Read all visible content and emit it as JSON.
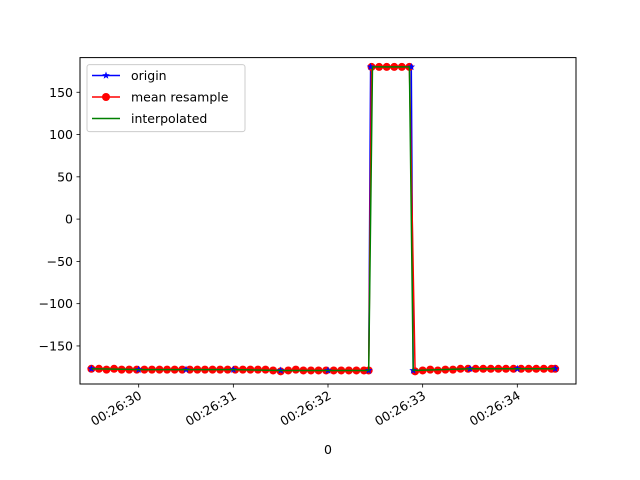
{
  "chart_data": {
    "type": "line",
    "title": "",
    "xlabel": "0",
    "ylabel": "",
    "x_axis_kind": "datetime",
    "xlim": [
      "00:26:29.38",
      "00:26:34.62"
    ],
    "ylim": [
      -195,
      191
    ],
    "x_ticks": [
      "00:26:30",
      "00:26:31",
      "00:26:32",
      "00:26:33",
      "00:26:34"
    ],
    "y_ticks": [
      150,
      100,
      50,
      0,
      -50,
      -100,
      -150
    ],
    "y_tick_labels": [
      "150",
      "100",
      "50",
      "0",
      "−50",
      "−100",
      "−150"
    ],
    "grid": false,
    "legend_position": "upper left",
    "series": [
      {
        "name": "origin",
        "color": "#0000ff",
        "marker": "star",
        "x": [
          "00:26:29.50",
          "00:26:30.00",
          "00:26:30.50",
          "00:26:31.00",
          "00:26:31.50",
          "00:26:32.00",
          "00:26:32.43",
          "00:26:32.45",
          "00:26:32.88",
          "00:26:32.90",
          "00:26:33.50",
          "00:26:34.00",
          "00:26:34.40"
        ],
        "values": [
          -177,
          -178,
          -178,
          -178,
          -179,
          -179,
          -179,
          180,
          180,
          -179,
          -177,
          -177,
          -177
        ]
      },
      {
        "name": "mean resample",
        "color": "#ff0000",
        "marker": "circle",
        "x": [
          "00:26:29.50",
          "00:26:29.58",
          "00:26:29.66",
          "00:26:29.74",
          "00:26:29.82",
          "00:26:29.90",
          "00:26:29.98",
          "00:26:30.06",
          "00:26:30.14",
          "00:26:30.22",
          "00:26:30.30",
          "00:26:30.38",
          "00:26:30.46",
          "00:26:30.54",
          "00:26:30.62",
          "00:26:30.70",
          "00:26:30.78",
          "00:26:30.86",
          "00:26:30.94",
          "00:26:31.02",
          "00:26:31.10",
          "00:26:31.18",
          "00:26:31.26",
          "00:26:31.34",
          "00:26:31.42",
          "00:26:31.50",
          "00:26:31.58",
          "00:26:31.66",
          "00:26:31.74",
          "00:26:31.82",
          "00:26:31.90",
          "00:26:31.98",
          "00:26:32.06",
          "00:26:32.14",
          "00:26:32.22",
          "00:26:32.30",
          "00:26:32.38",
          "00:26:32.43",
          "00:26:32.46",
          "00:26:32.54",
          "00:26:32.62",
          "00:26:32.70",
          "00:26:32.78",
          "00:26:32.86",
          "00:26:32.92",
          "00:26:33.00",
          "00:26:33.08",
          "00:26:33.16",
          "00:26:33.24",
          "00:26:33.32",
          "00:26:33.40",
          "00:26:33.48",
          "00:26:33.56",
          "00:26:33.64",
          "00:26:33.72",
          "00:26:33.80",
          "00:26:33.88",
          "00:26:33.96",
          "00:26:34.04",
          "00:26:34.12",
          "00:26:34.20",
          "00:26:34.28",
          "00:26:34.36",
          "00:26:34.40"
        ],
        "values": [
          -177,
          -177,
          -178,
          -177,
          -178,
          -178,
          -178,
          -178,
          -178,
          -178,
          -178,
          -178,
          -178,
          -178,
          -178,
          -178,
          -178,
          -178,
          -178,
          -178,
          -178,
          -178,
          -178,
          -178,
          -179,
          -180,
          -179,
          -178,
          -179,
          -179,
          -179,
          -179,
          -179,
          -179,
          -179,
          -179,
          -179,
          -179,
          180,
          180,
          180,
          180,
          180,
          180,
          -180,
          -179,
          -178,
          -179,
          -178,
          -178,
          -177,
          -177,
          -177,
          -177,
          -177,
          -177,
          -177,
          -177,
          -177,
          -177,
          -177,
          -177,
          -177,
          -177
        ]
      },
      {
        "name": "interpolated",
        "color": "#008000",
        "marker": "none",
        "x": [
          "00:26:29.50",
          "00:26:30.00",
          "00:26:30.50",
          "00:26:31.00",
          "00:26:31.50",
          "00:26:32.00",
          "00:26:32.43",
          "00:26:32.47",
          "00:26:32.86",
          "00:26:32.90",
          "00:26:33.50",
          "00:26:34.00",
          "00:26:34.40"
        ],
        "values": [
          -177,
          -178,
          -178,
          -178,
          -179,
          -179,
          -179,
          180,
          180,
          -179,
          -177,
          -177,
          -177
        ]
      }
    ]
  }
}
